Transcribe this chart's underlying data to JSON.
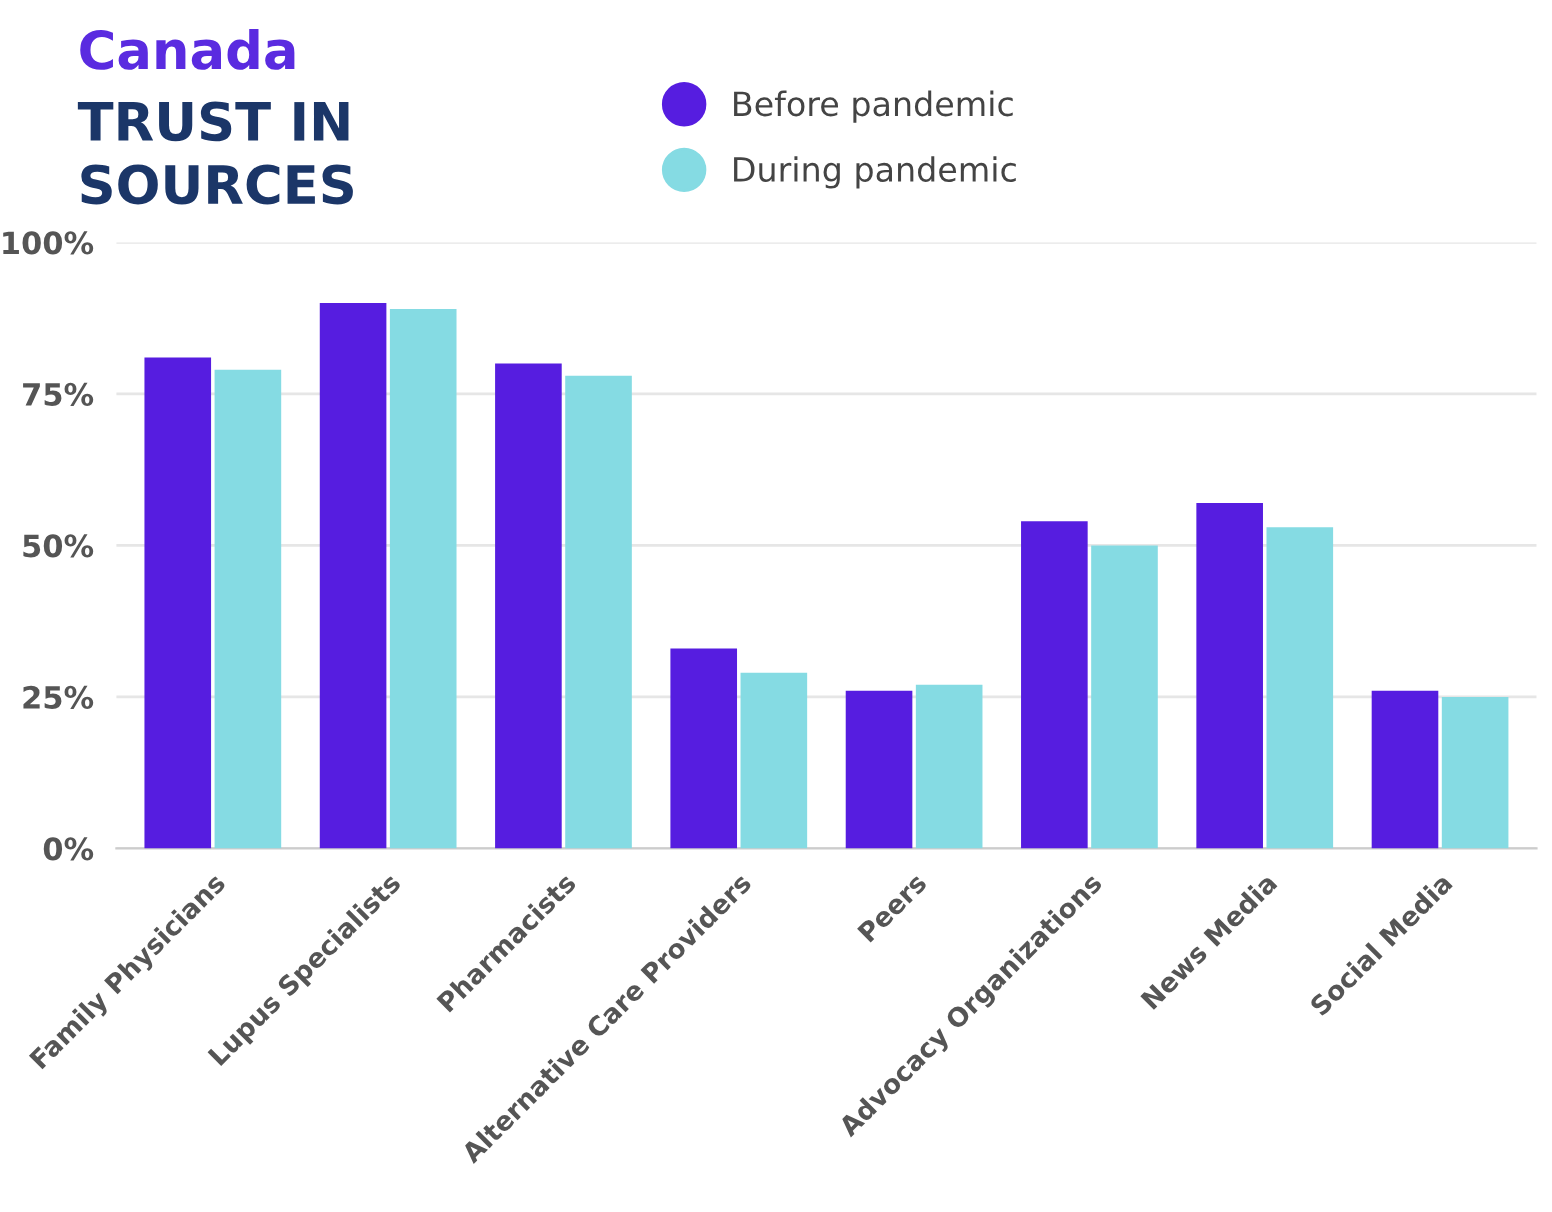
{
  "chart_data": {
    "type": "bar",
    "title": "Canada",
    "subtitle": "TRUST IN\nSOURCES",
    "categories": [
      "Family Physicians",
      "Lupus Specialists",
      "Pharmacists",
      "Alternative Care Providers",
      "Peers",
      "Advocacy Organizations",
      "News Media",
      "Social Media"
    ],
    "series": [
      {
        "name": "Before pandemic",
        "color": "#561de0",
        "values": [
          81,
          90,
          80,
          33,
          26,
          54,
          57,
          26
        ]
      },
      {
        "name": "During pandemic",
        "color": "#85dbe3",
        "values": [
          79,
          89,
          78,
          29,
          27,
          50,
          53,
          25
        ]
      }
    ],
    "ylim": [
      0,
      100
    ],
    "yticks": [
      {
        "value": 0,
        "label": "0%"
      },
      {
        "value": 25,
        "label": "25%"
      },
      {
        "value": 50,
        "label": "50%"
      },
      {
        "value": 75,
        "label": "75%"
      },
      {
        "value": 100,
        "label": "100%"
      }
    ],
    "grid": "y",
    "legend": "top",
    "marker": "circle"
  }
}
